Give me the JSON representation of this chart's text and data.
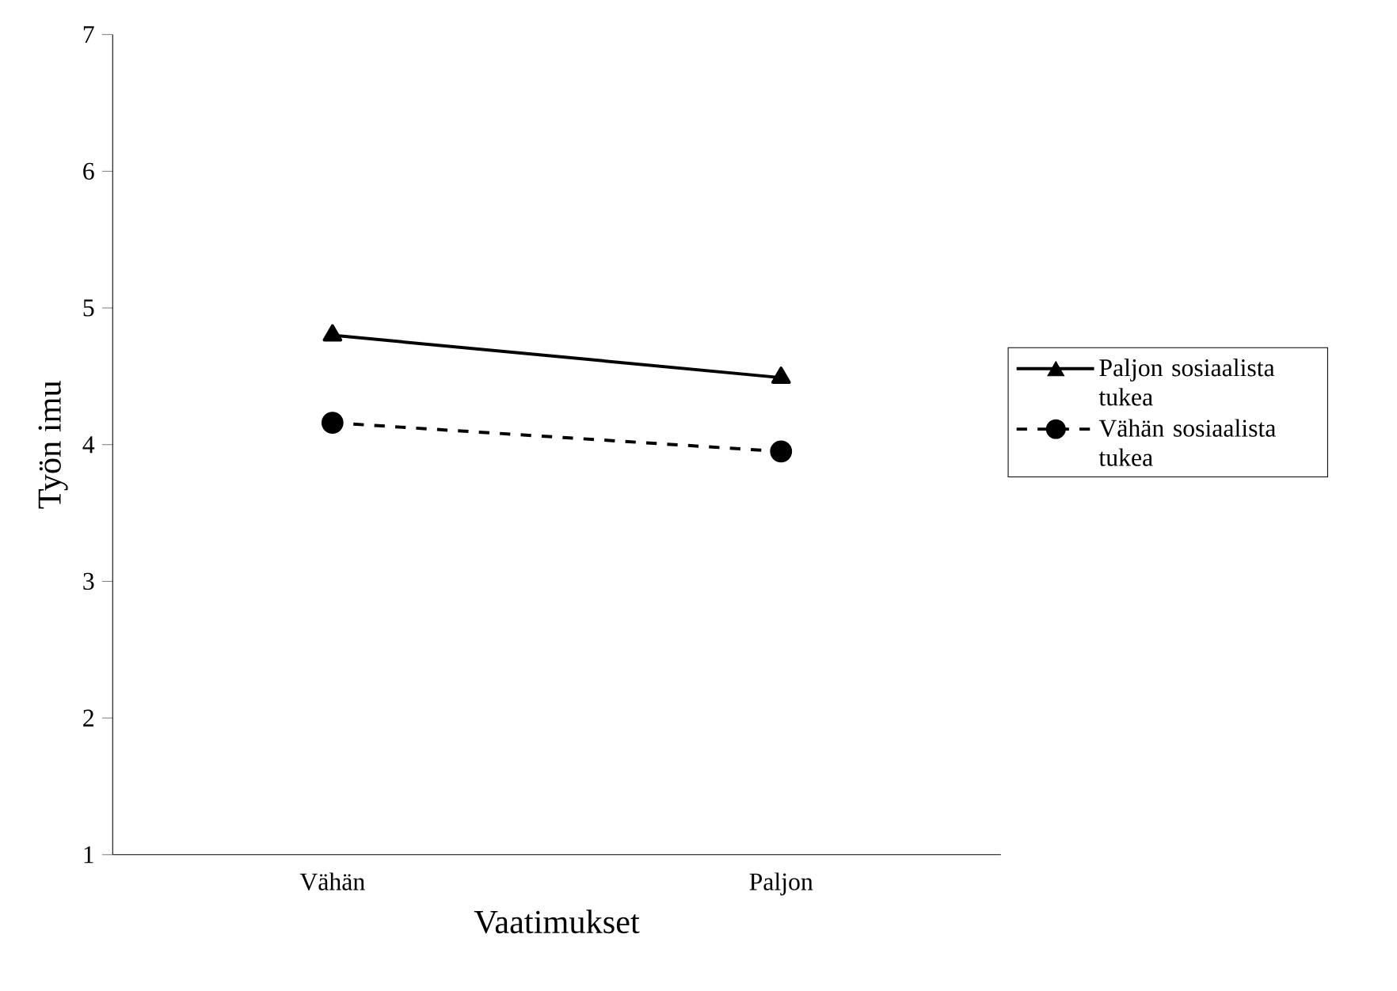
{
  "chart_data": {
    "type": "line",
    "xlabel": "Vaatimukset",
    "ylabel": "Työn imu",
    "categories": [
      "Vähän",
      "Paljon"
    ],
    "ylim": [
      1,
      7
    ],
    "yticks": [
      1,
      2,
      3,
      4,
      5,
      6,
      7
    ],
    "grid": false,
    "legend": "right",
    "series": [
      {
        "name": "Paljon sosiaalista tukea",
        "color": "#000000",
        "marker": "triangle",
        "line_style": "solid",
        "values": [
          4.8,
          4.49
        ]
      },
      {
        "name": "Vähän sosiaalista tukea",
        "color": "#000000",
        "marker": "circle",
        "line_style": "dashed",
        "values": [
          4.16,
          3.95
        ]
      }
    ]
  }
}
